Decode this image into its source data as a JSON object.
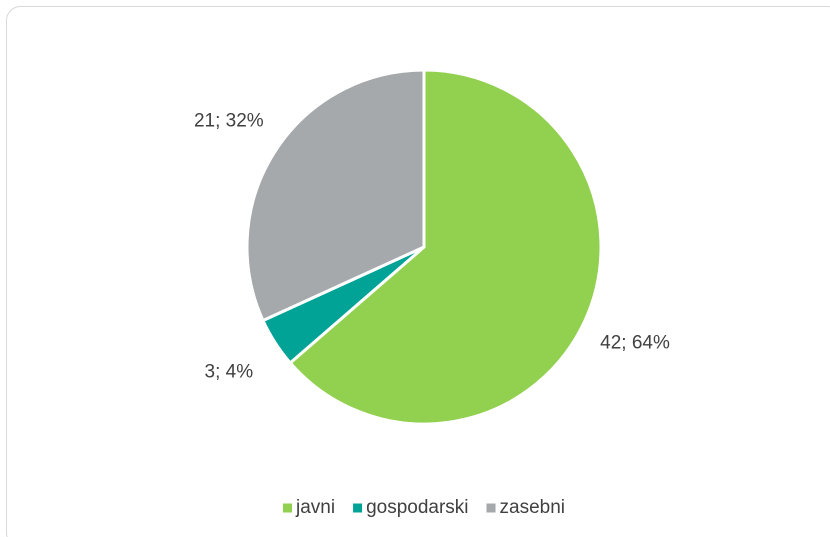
{
  "chart_data": {
    "type": "pie",
    "categories": [
      "javni",
      "gospodarski",
      "zasebni"
    ],
    "values": [
      42,
      3,
      21
    ],
    "value_labels": [
      "42; 64%",
      "3; 4%",
      "21; 32%"
    ],
    "colors": [
      "#92d050",
      "#00a396",
      "#a5a9ab"
    ],
    "legend": "bottom"
  }
}
